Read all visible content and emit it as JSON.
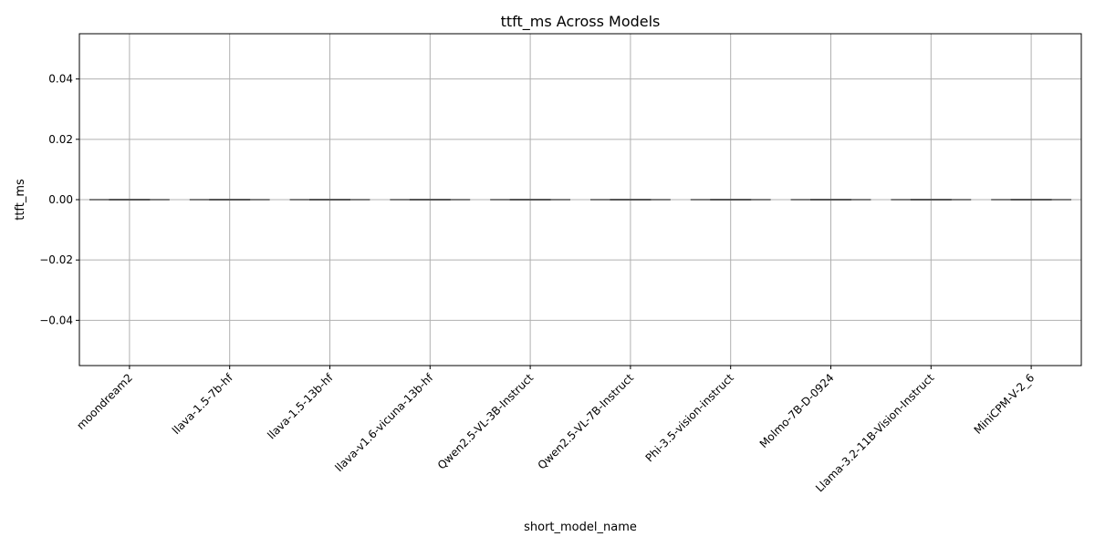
{
  "chart_data": {
    "type": "box",
    "title": "ttft_ms Across Models",
    "xlabel": "short_model_name",
    "ylabel": "ttft_ms",
    "ylim": [
      -0.055,
      0.055
    ],
    "yticks": [
      -0.04,
      -0.02,
      0.0,
      0.02,
      0.04
    ],
    "ytick_labels": [
      "−0.04",
      "−0.02",
      "0.00",
      "0.02",
      "0.04"
    ],
    "grid": true,
    "categories": [
      "moondream2",
      "llava-1.5-7b-hf",
      "llava-1.5-13b-hf",
      "llava-v1.6-vicuna-13b-hf",
      "Qwen2.5-VL-3B-Instruct",
      "Qwen2.5-VL-7B-Instruct",
      "Phi-3.5-vision-instruct",
      "Molmo-7B-D-0924",
      "Llama-3.2-11B-Vision-Instruct",
      "MiniCPM-V-2_6"
    ],
    "values": [
      0,
      0,
      0,
      0,
      0,
      0,
      0,
      0,
      0,
      0
    ],
    "box_color": "#555555",
    "grid_color": "#b0b0b0"
  }
}
